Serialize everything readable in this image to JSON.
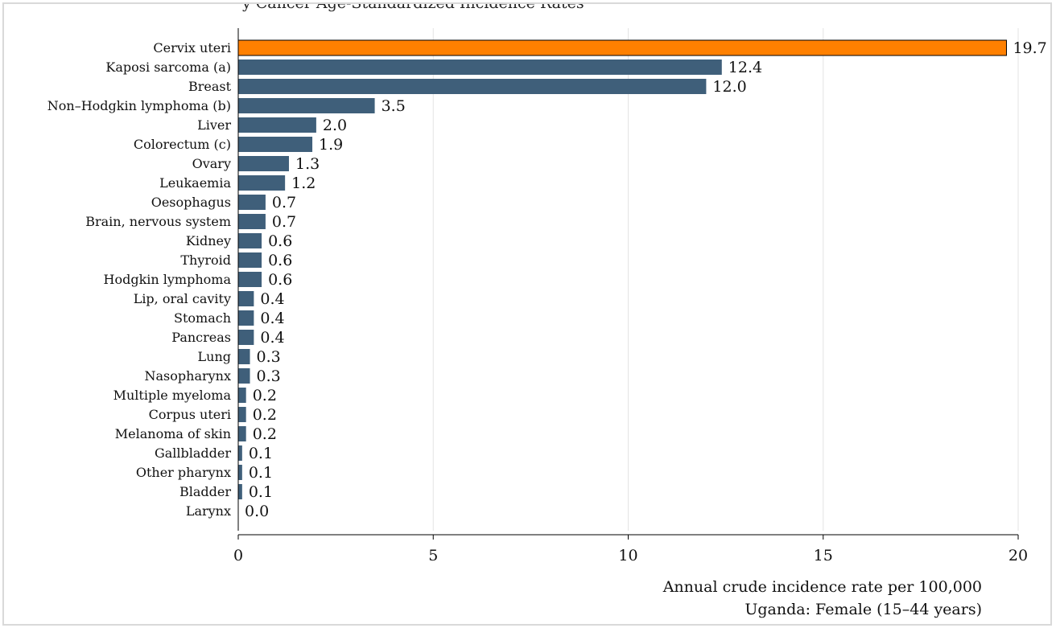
{
  "page_title_fragment": "y Cancer Age-Standardized Incidence Rates",
  "chart_data": {
    "type": "bar",
    "orientation": "horizontal",
    "categories": [
      "Cervix uteri",
      "Kaposi sarcoma (a)",
      "Breast",
      "Non–Hodgkin lymphoma (b)",
      "Liver",
      "Colorectum (c)",
      "Ovary",
      "Leukaemia",
      "Oesophagus",
      "Brain, nervous system",
      "Kidney",
      "Thyroid",
      "Hodgkin lymphoma",
      "Lip, oral cavity",
      "Stomach",
      "Pancreas",
      "Lung",
      "Nasopharynx",
      "Multiple myeloma",
      "Corpus uteri",
      "Melanoma of skin",
      "Gallbladder",
      "Other pharynx",
      "Bladder",
      "Larynx"
    ],
    "values": [
      19.7,
      12.4,
      12.0,
      3.5,
      2.0,
      1.9,
      1.3,
      1.2,
      0.7,
      0.7,
      0.6,
      0.6,
      0.6,
      0.4,
      0.4,
      0.4,
      0.3,
      0.3,
      0.2,
      0.2,
      0.2,
      0.1,
      0.1,
      0.1,
      0.0
    ],
    "value_labels": [
      "19.7",
      "12.4",
      "12.0",
      "3.5",
      "2.0",
      "1.9",
      "1.3",
      "1.2",
      "0.7",
      "0.7",
      "0.6",
      "0.6",
      "0.6",
      "0.4",
      "0.4",
      "0.4",
      "0.3",
      "0.3",
      "0.2",
      "0.2",
      "0.2",
      "0.1",
      "0.1",
      "0.1",
      "0.0"
    ],
    "highlight_index": 0,
    "xlim": [
      0,
      20
    ],
    "xticks": [
      0,
      5,
      10,
      15,
      20
    ],
    "grid": true,
    "xlabel": "Annual crude incidence rate per 100,000",
    "note": "Uganda: Female (15–44 years)",
    "colors": {
      "bar": "#3f5f7a",
      "highlight": "#ff8000",
      "grid": "#e3e3e3",
      "axis": "#000000"
    }
  }
}
